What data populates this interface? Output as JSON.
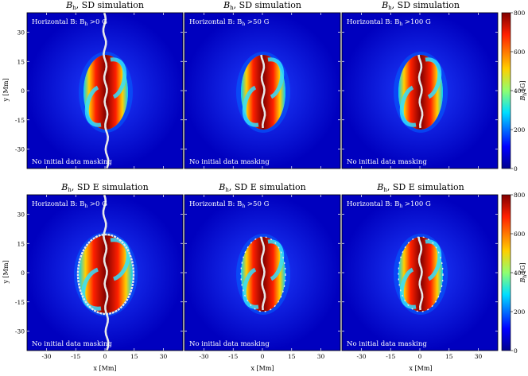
{
  "figure": {
    "rows": [
      {
        "title_main": "B",
        "title_sub": "h",
        "title_rest": ", SD simulation",
        "panels": [
          {
            "label": "Horizontal B: B",
            "label_sub": "h",
            "label_rest": " >0 G",
            "note": "No initial data masking"
          },
          {
            "label": "Horizontal B: B",
            "label_sub": "h",
            "label_rest": " >50 G",
            "note": "No initial data masking"
          },
          {
            "label": "Horizontal B: B",
            "label_sub": "h",
            "label_rest": " >100 G",
            "note": "No initial data masking"
          }
        ]
      },
      {
        "title_main": "B",
        "title_sub": "h",
        "title_rest": ", SD E simulation",
        "panels": [
          {
            "label": "Horizontal B: B",
            "label_sub": "h",
            "label_rest": " >0 G",
            "note": "No initial data masking"
          },
          {
            "label": "Horizontal B: B",
            "label_sub": "h",
            "label_rest": " >50 G",
            "note": "No initial data masking"
          },
          {
            "label": "Horizontal B: B",
            "label_sub": "h",
            "label_rest": " >100 G",
            "note": "No initial data masking"
          }
        ]
      }
    ]
  },
  "chart_data": {
    "type": "heatmap",
    "xlabel": "x [Mm]",
    "ylabel": "y [Mm]",
    "x_ticks": [
      "-30",
      "-15",
      "0",
      "15",
      "30"
    ],
    "y_ticks": [
      "30",
      "15",
      "0",
      "-15",
      "-30"
    ],
    "xlim": [
      -40,
      40
    ],
    "ylim": [
      -40,
      40
    ],
    "colorbar": {
      "label": "B",
      "label_sub": "h",
      "label_unit": " [G]",
      "ticks": [
        "800",
        "600",
        "400",
        "200",
        "0"
      ],
      "range": [
        0,
        800
      ]
    },
    "colormap": [
      "#00008f",
      "#0050ff",
      "#00dfff",
      "#8fff70",
      "#ffcf00",
      "#ff3000",
      "#800000"
    ]
  }
}
